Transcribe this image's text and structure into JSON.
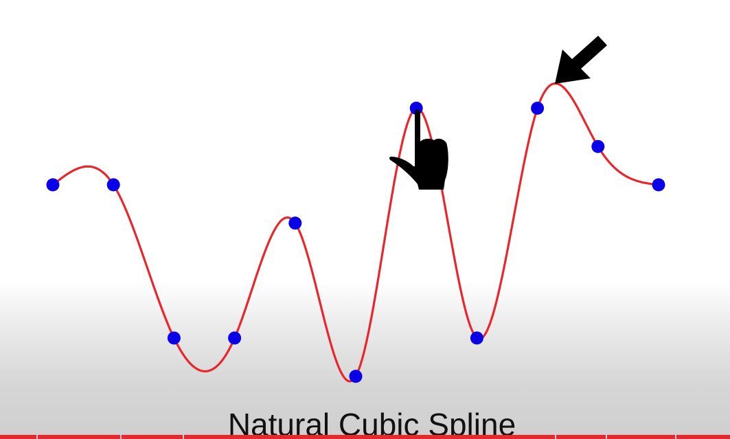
{
  "title": "Natural Cubic Spline",
  "colors": {
    "curve": "#e8262c",
    "knot": "#0a00e8",
    "pointer": "#000000",
    "progress": "#e8262c"
  },
  "icons": [
    "pointing-hand-icon",
    "arrow-pointer-icon"
  ],
  "knots": [
    {
      "x": 0,
      "y": 0.0
    },
    {
      "x": 1,
      "y": 0.0
    },
    {
      "x": 2,
      "y": -2.0
    },
    {
      "x": 3,
      "y": -2.0
    },
    {
      "x": 4,
      "y": -0.5
    },
    {
      "x": 5,
      "y": -2.5
    },
    {
      "x": 6,
      "y": 1.0
    },
    {
      "x": 7,
      "y": -2.0
    },
    {
      "x": 8,
      "y": 1.0
    },
    {
      "x": 9,
      "y": 0.5
    },
    {
      "x": 10,
      "y": 0.0
    }
  ],
  "spline_type": "natural-cubic",
  "video_progress": {
    "played_fraction": 1.0,
    "chapter_marks": [
      0.05,
      0.165,
      0.25,
      0.76,
      0.83,
      0.925
    ]
  }
}
